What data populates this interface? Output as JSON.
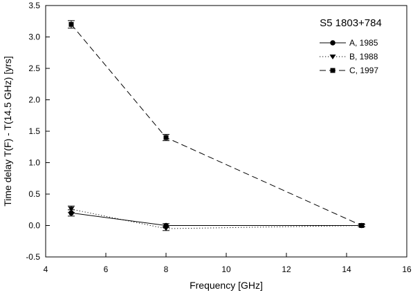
{
  "chart_data": {
    "type": "line",
    "title": "S5 1803+784",
    "xlabel": "Frequency [GHz]",
    "ylabel": "Time delay T(F) - T(14.5 GHz) [yrs]",
    "xlim": [
      4,
      16
    ],
    "ylim": [
      -0.5,
      3.5
    ],
    "x_ticks": [
      4,
      6,
      8,
      10,
      12,
      14,
      16
    ],
    "y_ticks": [
      -0.5,
      0.0,
      0.5,
      1.0,
      1.5,
      2.0,
      2.5,
      3.0,
      3.5
    ],
    "x_tick_labels": [
      "4",
      "6",
      "8",
      "10",
      "12",
      "14",
      "16"
    ],
    "y_tick_labels": [
      "-0.5",
      "0.0",
      "0.5",
      "1.0",
      "1.5",
      "2.0",
      "2.5",
      "3.0",
      "3.5"
    ],
    "grid": false,
    "legend_position": "top-right",
    "series": [
      {
        "name": "A, 1985",
        "marker": "circle",
        "line_style": "solid",
        "points": [
          {
            "x": 4.85,
            "y": 0.2,
            "err": 0.05
          },
          {
            "x": 8.0,
            "y": 0.0,
            "err": 0.03
          },
          {
            "x": 14.5,
            "y": 0.0,
            "err": 0.02
          }
        ]
      },
      {
        "name": "B, 1988",
        "marker": "triangle-down",
        "line_style": "dotted",
        "points": [
          {
            "x": 4.85,
            "y": 0.26,
            "err": 0.05
          },
          {
            "x": 8.0,
            "y": -0.05,
            "err": 0.03
          },
          {
            "x": 14.5,
            "y": 0.0,
            "err": 0.02
          }
        ]
      },
      {
        "name": "C, 1997",
        "marker": "square",
        "line_style": "dashed",
        "points": [
          {
            "x": 4.85,
            "y": 3.2,
            "err": 0.06
          },
          {
            "x": 8.0,
            "y": 1.4,
            "err": 0.05
          },
          {
            "x": 14.5,
            "y": 0.0,
            "err": 0.02
          }
        ]
      }
    ]
  }
}
